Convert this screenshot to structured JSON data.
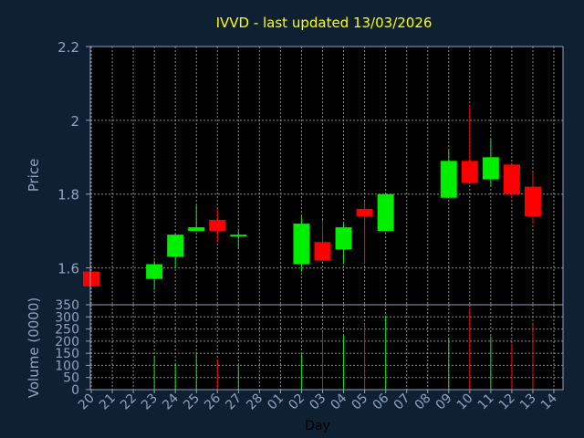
{
  "colors": {
    "background": "#0f2033",
    "plot_background": "#000000",
    "frame": "#8ea3bd",
    "grid": "#8c8c8c",
    "title": "#ffff00",
    "axis_text": "#8ea3bd",
    "up": "#00ee00",
    "down": "#ff0000"
  },
  "chart_data": [
    {
      "type": "candlestick",
      "title": "IVVD - last updated 13/03/2026",
      "ylabel": "Price",
      "ylim": [
        1.5,
        2.2
      ],
      "yticks": [
        "1.6",
        "1.8",
        "2",
        "2.2"
      ],
      "categories": [
        "20",
        "21",
        "22",
        "23",
        "24",
        "25",
        "26",
        "27",
        "28",
        "01",
        "02",
        "03",
        "04",
        "05",
        "06",
        "07",
        "08",
        "09",
        "10",
        "11",
        "12",
        "13",
        "14"
      ],
      "grid": true,
      "candles": [
        {
          "day": "20",
          "open": 1.59,
          "high": 1.59,
          "low": 1.55,
          "close": 1.55
        },
        {
          "day": "23",
          "open": 1.57,
          "high": 1.62,
          "low": 1.54,
          "close": 1.61
        },
        {
          "day": "24",
          "open": 1.63,
          "high": 1.69,
          "low": 1.6,
          "close": 1.69
        },
        {
          "day": "25",
          "open": 1.7,
          "high": 1.77,
          "low": 1.7,
          "close": 1.71
        },
        {
          "day": "26",
          "open": 1.73,
          "high": 1.76,
          "low": 1.67,
          "close": 1.7
        },
        {
          "day": "27",
          "open": 1.69,
          "high": 1.7,
          "low": 1.65,
          "close": 1.69
        },
        {
          "day": "02",
          "open": 1.61,
          "high": 1.74,
          "low": 1.59,
          "close": 1.72
        },
        {
          "day": "03",
          "open": 1.67,
          "high": 1.73,
          "low": 1.62,
          "close": 1.62
        },
        {
          "day": "04",
          "open": 1.65,
          "high": 1.72,
          "low": 1.61,
          "close": 1.71
        },
        {
          "day": "05",
          "open": 1.76,
          "high": 1.78,
          "low": 1.61,
          "close": 1.74
        },
        {
          "day": "06",
          "open": 1.7,
          "high": 1.8,
          "low": 1.7,
          "close": 1.8
        },
        {
          "day": "09",
          "open": 1.79,
          "high": 1.92,
          "low": 1.79,
          "close": 1.89
        },
        {
          "day": "10",
          "open": 1.89,
          "high": 2.04,
          "low": 1.83,
          "close": 1.83
        },
        {
          "day": "11",
          "open": 1.84,
          "high": 1.95,
          "low": 1.82,
          "close": 1.9
        },
        {
          "day": "12",
          "open": 1.88,
          "high": 1.88,
          "low": 1.79,
          "close": 1.8
        },
        {
          "day": "13",
          "open": 1.82,
          "high": 1.86,
          "low": 1.72,
          "close": 1.74
        }
      ]
    },
    {
      "type": "bar",
      "ylabel": "Volume (0000)",
      "xlabel": "Day",
      "ylim": [
        0,
        350
      ],
      "yticks": [
        "0",
        "50",
        "100",
        "150",
        "200",
        "250",
        "300",
        "350"
      ],
      "categories": [
        "20",
        "21",
        "22",
        "23",
        "24",
        "25",
        "26",
        "27",
        "28",
        "01",
        "02",
        "03",
        "04",
        "05",
        "06",
        "07",
        "08",
        "09",
        "10",
        "11",
        "12",
        "13",
        "14"
      ],
      "grid": true,
      "bars": [
        {
          "day": "23",
          "value": 140,
          "direction": "up"
        },
        {
          "day": "24",
          "value": 110,
          "direction": "up"
        },
        {
          "day": "25",
          "value": 155,
          "direction": "up"
        },
        {
          "day": "26",
          "value": 125,
          "direction": "down"
        },
        {
          "day": "27",
          "value": 100,
          "direction": "up"
        },
        {
          "day": "02",
          "value": 150,
          "direction": "up"
        },
        {
          "day": "03",
          "value": 240,
          "direction": "down"
        },
        {
          "day": "04",
          "value": 225,
          "direction": "up"
        },
        {
          "day": "05",
          "value": 270,
          "direction": "down"
        },
        {
          "day": "06",
          "value": 305,
          "direction": "up"
        },
        {
          "day": "09",
          "value": 215,
          "direction": "up"
        },
        {
          "day": "10",
          "value": 335,
          "direction": "down"
        },
        {
          "day": "11",
          "value": 220,
          "direction": "up"
        },
        {
          "day": "12",
          "value": 190,
          "direction": "down"
        },
        {
          "day": "13",
          "value": 270,
          "direction": "down"
        }
      ]
    }
  ]
}
